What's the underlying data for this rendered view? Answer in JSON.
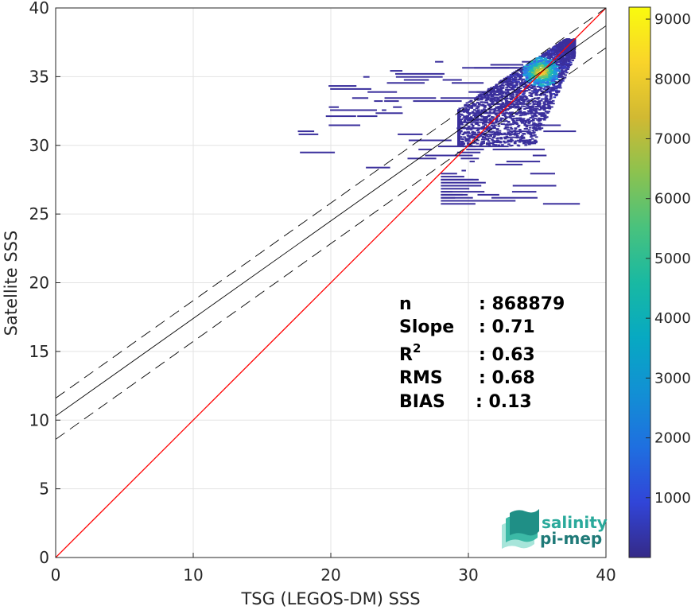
{
  "chart_data": {
    "type": "heatmap",
    "title": "",
    "xlabel": "TSG (LEGOS-DM) SSS",
    "ylabel": "Satellite SSS",
    "xlim": [
      0,
      40
    ],
    "ylim": [
      0,
      40
    ],
    "xticks": [
      0,
      10,
      20,
      30,
      40
    ],
    "yticks": [
      0,
      5,
      10,
      15,
      20,
      25,
      30,
      35,
      40
    ],
    "grid": true,
    "colorbar": {
      "range": [
        0,
        9200
      ],
      "ticks": [
        1000,
        2000,
        3000,
        4000,
        5000,
        6000,
        7000,
        8000,
        9000
      ],
      "colormap": "parula"
    },
    "lines": [
      {
        "kind": "identity",
        "color": "#ff0000",
        "x": [
          0,
          40
        ],
        "y": [
          0,
          40
        ]
      },
      {
        "kind": "regression",
        "color": "#000000",
        "x": [
          0,
          40
        ],
        "y": [
          10.3,
          38.7
        ]
      },
      {
        "kind": "regression-upper",
        "color": "#000000",
        "dashed": true,
        "x": [
          0,
          40
        ],
        "y": [
          11.6,
          40.0
        ]
      },
      {
        "kind": "regression-lower",
        "color": "#000000",
        "dashed": true,
        "x": [
          0,
          40
        ],
        "y": [
          8.6,
          37.1
        ]
      }
    ],
    "density_core": {
      "x": 35.2,
      "y": 35.4,
      "peak": 9200
    },
    "stats": [
      {
        "label": "n",
        "value": ": 868879"
      },
      {
        "label": "Slope",
        "value": ": 0.71"
      },
      {
        "label": "R",
        "sup": "2",
        "value": ": 0.63"
      },
      {
        "label": "RMS",
        "value": ": 0.68"
      },
      {
        "label": "BIAS",
        "value": ": 0.13"
      }
    ]
  },
  "logo": {
    "line1": "salinity",
    "line2": "pi-mep",
    "colors": [
      "#2aa99b",
      "#1f7a78",
      "#7fd6c8"
    ]
  }
}
